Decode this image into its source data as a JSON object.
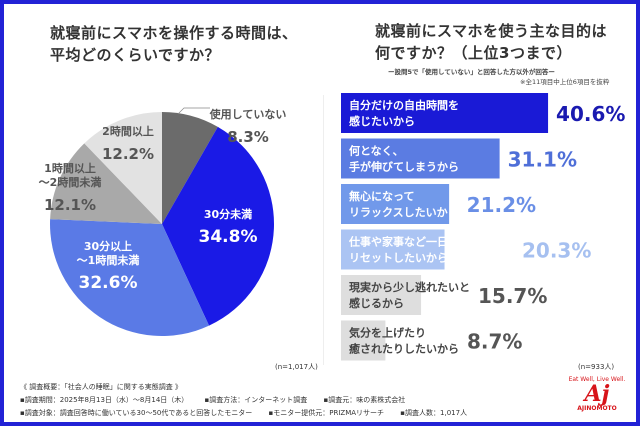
{
  "left": {
    "title_lines": [
      "就寝前にスマホを操作する時間は、",
      "平均どのくらいですか？"
    ],
    "n": "(n=1,017人)"
  },
  "right": {
    "title_lines": [
      "就寝前にスマホを使う主な目的は",
      "何ですか？（上位3つまで）"
    ],
    "note1": "ー設問5で「使用していない」と回答した方以外が回答ー",
    "note2": "※全11項目中上位6項目を抜粋",
    "n": "(n=933人)"
  },
  "chart_data": [
    {
      "type": "pie",
      "start": "top, clockwise",
      "slices": [
        {
          "label": "使用していない",
          "value": 8.3,
          "display": "8.3%",
          "color": "#6b6b6b"
        },
        {
          "label": "30分未満",
          "value": 34.8,
          "display": "34.8%",
          "color": "#1a1ae6"
        },
        {
          "label": "30分以上\n〜1時間未満",
          "value": 32.6,
          "display": "32.6%",
          "color": "#5a7ae6"
        },
        {
          "label": "1時間以上\n〜2時間未満",
          "value": 12.1,
          "display": "12.1%",
          "color": "#a9a9a9"
        },
        {
          "label": "2時間以上",
          "value": 12.2,
          "display": "12.2%",
          "color": "#e2e2e2"
        }
      ]
    },
    {
      "type": "bar",
      "orientation": "horizontal",
      "categories": [
        "自分だけの自由時間を\n感じたいから",
        "何となく、\n手が伸びてしまうから",
        "無心になって\nリラックスしたいから",
        "仕事や家事など一日のストレスを\nリセットしたいから",
        "現実から少し逃れたいと\n感じるから",
        "気分を上げたり\n癒されたりしたいから"
      ],
      "values": [
        40.6,
        31.1,
        21.2,
        20.3,
        15.7,
        8.7
      ],
      "display": [
        "40.6%",
        "31.1%",
        "21.2%",
        "20.3%",
        "15.7%",
        "8.7%"
      ],
      "colors": [
        "#1a1ad6",
        "#5b7ce2",
        "#7199ea",
        "#abc4f3",
        "#dedede",
        "#dedede"
      ],
      "label_colors": [
        "#1a1ab0",
        "#4f6fd8",
        "#6a8fe6",
        "#a6c0f0",
        "#555555",
        "#555555"
      ]
    }
  ],
  "footer": {
    "heading": "《 調査概要：「社会人の睡眠」に関する実態調査 》",
    "row1": [
      "▪調査期間：2025年8月13日（水）〜8月14日（木）",
      "▪調査方法：インターネット調査",
      "▪調査元：味の素株式会社"
    ],
    "row2": [
      "▪調査対象：調査回答時に働いている30〜50代であると回答したモニター",
      "▪モニター提供元：PRIZMAリサーチ",
      "▪調査人数：1,017人"
    ]
  },
  "logo": {
    "tagline": "Eat Well, Live Well.",
    "mark": "Aj",
    "name": "AJINOMOTO",
    "color": "#d7141a"
  }
}
